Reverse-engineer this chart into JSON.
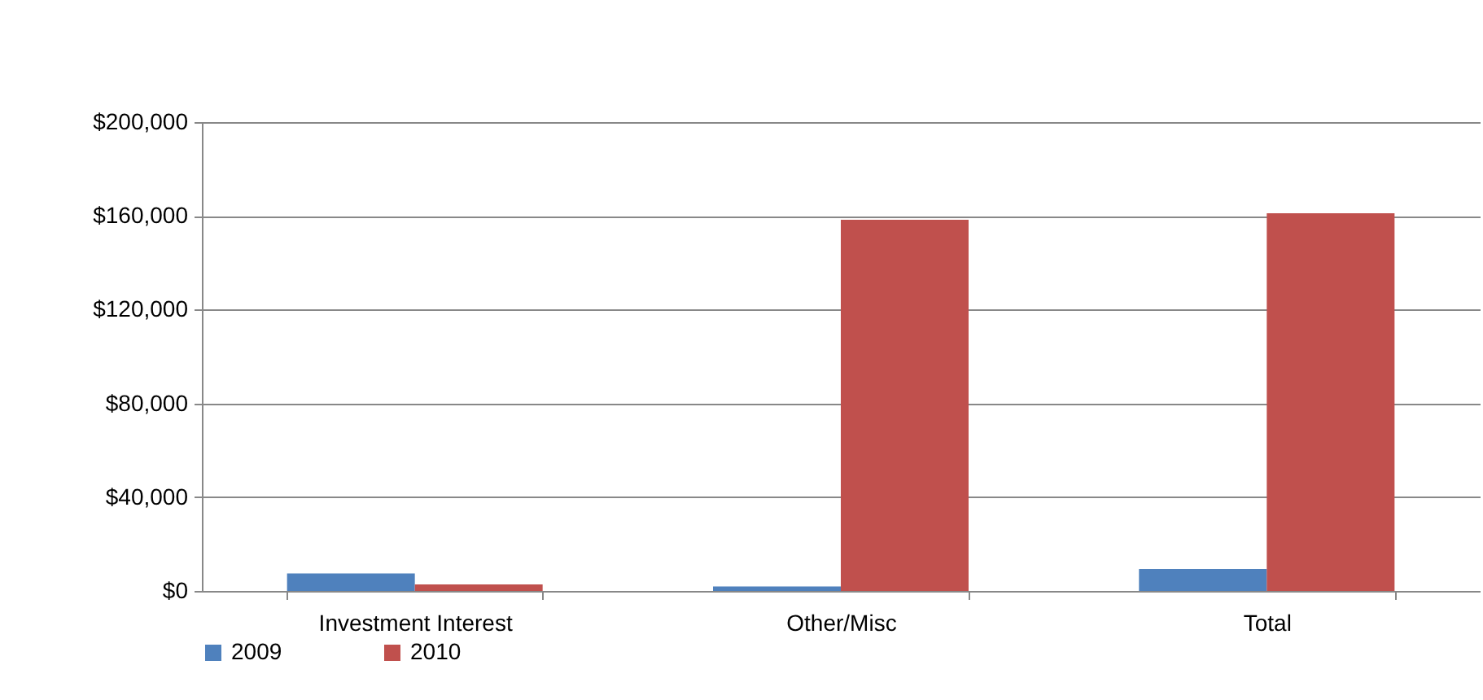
{
  "chart_data": {
    "type": "bar",
    "categories": [
      "Investment Interest",
      "Other/Misc",
      "Total"
    ],
    "series": [
      {
        "name": "2009",
        "color": "#4f81bd",
        "values": [
          7500,
          1900,
          9400
        ]
      },
      {
        "name": "2010",
        "color": "#c0504d",
        "values": [
          2800,
          158300,
          161100
        ]
      }
    ],
    "ylim": [
      0,
      200000
    ],
    "yticks": [
      {
        "value": 0,
        "label": "$0"
      },
      {
        "value": 40000,
        "label": "$40,000"
      },
      {
        "value": 80000,
        "label": "$80,000"
      },
      {
        "value": 120000,
        "label": "$120,000"
      },
      {
        "value": 160000,
        "label": "$160,000"
      },
      {
        "value": 200000,
        "label": "$200,000"
      }
    ],
    "grid": "y",
    "legend": "bottom"
  }
}
